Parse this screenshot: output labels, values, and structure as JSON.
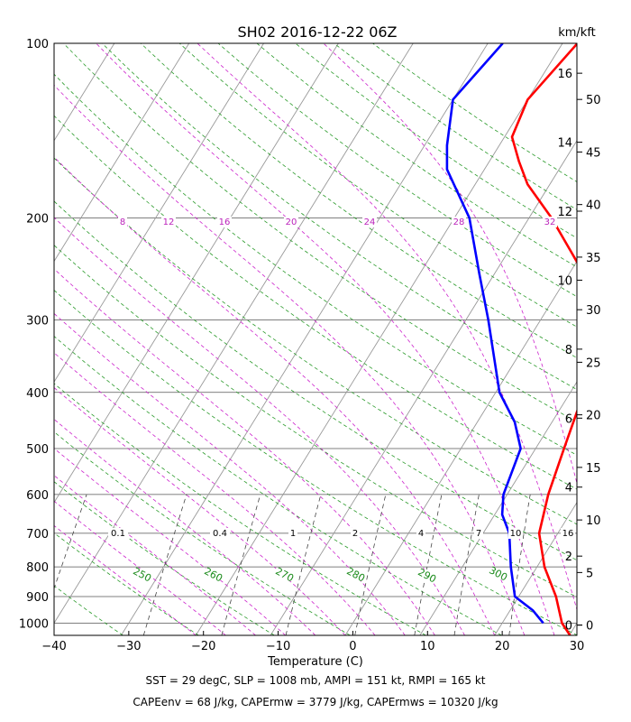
{
  "chart_data": {
    "type": "line",
    "title": "SH02 2016-12-22 06Z",
    "xlabel": "Temperature (C)",
    "right_axis_label": "km/kft",
    "x_ticks": [
      "−40",
      "−30",
      "−20",
      "−10",
      "0",
      "10",
      "20",
      "30"
    ],
    "x_tick_values": [
      -40,
      -30,
      -20,
      -10,
      0,
      10,
      20,
      30
    ],
    "xlim": [
      -40,
      30
    ],
    "ylim": [
      1050,
      100
    ],
    "y_scale": "log",
    "p_ticks": [
      "100",
      "200",
      "300",
      "400",
      "500",
      "600",
      "700",
      "800",
      "900",
      "1000"
    ],
    "p_tick_values": [
      100,
      200,
      300,
      400,
      500,
      600,
      700,
      800,
      900,
      1000
    ],
    "km_ticks": [
      "0",
      "2",
      "4",
      "6",
      "8",
      "10",
      "12",
      "14",
      "16"
    ],
    "kft_ticks": [
      "0",
      "5",
      "10",
      "15",
      "20",
      "25",
      "30",
      "35",
      "40",
      "45",
      "50"
    ],
    "mixing_ratio_labels": [
      "0.1",
      "0.4",
      "1",
      "2",
      "4",
      "7",
      "10",
      "16"
    ],
    "theta_labels": [
      "250",
      "260",
      "270",
      "280",
      "290",
      "300"
    ],
    "theta_e_labels": [
      "8",
      "12",
      "16",
      "20",
      "24",
      "28",
      "32"
    ],
    "series": [
      {
        "color": "#ff0000",
        "points": [
          [
            30.1,
            1050
          ],
          [
            28,
            1000
          ],
          [
            25,
            900
          ],
          [
            21,
            800
          ],
          [
            17.5,
            700
          ],
          [
            15.5,
            600
          ],
          [
            13.8,
            500
          ],
          [
            11.8,
            400
          ],
          [
            7,
            300
          ],
          [
            2,
            250
          ],
          [
            -7,
            200
          ],
          [
            -13,
            175
          ],
          [
            -16,
            160
          ],
          [
            -19,
            145
          ],
          [
            -20,
            125
          ],
          [
            -18,
            100
          ]
        ]
      },
      {
        "color": "#0000ff",
        "points": [
          [
            25.5,
            1000
          ],
          [
            23,
            950
          ],
          [
            19.5,
            900
          ],
          [
            16.5,
            800
          ],
          [
            13.5,
            700
          ],
          [
            11,
            650
          ],
          [
            9.5,
            600
          ],
          [
            8,
            500
          ],
          [
            5,
            450
          ],
          [
            0.5,
            400
          ],
          [
            -7,
            300
          ],
          [
            -12,
            250
          ],
          [
            -18,
            200
          ],
          [
            -25,
            165
          ],
          [
            -27,
            150
          ],
          [
            -30,
            125
          ],
          [
            -28,
            100
          ]
        ]
      }
    ],
    "annotations": [
      "SST = 29 degC, SLP = 1008 mb, AMPI = 151 kt, RMPI = 165 kt",
      "CAPEenv = 68 J/kg, CAPErmw = 3779 J/kg, CAPErmws = 10320 J/kg"
    ],
    "grid": true
  }
}
